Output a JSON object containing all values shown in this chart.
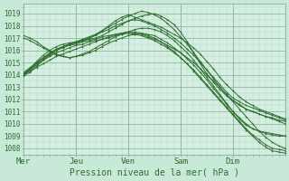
{
  "title": "Pression niveau de la mer( hPa )",
  "background_color": "#c8e8d8",
  "plot_bg_color": "#d4eee0",
  "grid_color_minor": "#b8d8c8",
  "grid_color_major": "#90b8a8",
  "line_color": "#2d6e2d",
  "x_labels": [
    "Mer",
    "Jeu",
    "Ven",
    "Sam",
    "Dim"
  ],
  "x_ticks": [
    0,
    24,
    48,
    72,
    96
  ],
  "ylim": [
    1007.5,
    1019.8
  ],
  "yticks": [
    1008,
    1009,
    1010,
    1011,
    1012,
    1013,
    1014,
    1015,
    1016,
    1017,
    1018,
    1019
  ],
  "total_hours": 120,
  "lines": [
    {
      "x": [
        0,
        3,
        6,
        9,
        12,
        15,
        18,
        21,
        24,
        27,
        30,
        33,
        36,
        39,
        42,
        45,
        48,
        51,
        54,
        57,
        60,
        63,
        66,
        69,
        72,
        75,
        78,
        81,
        84,
        87,
        90,
        93,
        96,
        99,
        102,
        105,
        108,
        111,
        114,
        117,
        120
      ],
      "y": [
        1014.0,
        1014.3,
        1014.6,
        1014.9,
        1015.2,
        1015.5,
        1015.7,
        1015.9,
        1016.1,
        1016.3,
        1016.5,
        1016.7,
        1016.9,
        1017.1,
        1017.3,
        1017.4,
        1017.5,
        1017.4,
        1017.3,
        1017.1,
        1016.9,
        1016.7,
        1016.4,
        1016.1,
        1015.8,
        1015.4,
        1015.0,
        1014.5,
        1014.0,
        1013.5,
        1013.0,
        1012.4,
        1011.8,
        1011.2,
        1010.6,
        1010.0,
        1009.4,
        1008.9,
        1008.5,
        1008.2,
        1008.0
      ]
    },
    {
      "x": [
        0,
        3,
        6,
        9,
        12,
        15,
        18,
        21,
        24,
        27,
        30,
        33,
        36,
        39,
        42,
        45,
        48,
        51,
        54,
        57,
        60,
        63,
        66,
        69,
        72,
        75,
        78,
        81,
        84,
        87,
        90,
        93,
        96,
        99,
        102,
        105,
        108,
        111,
        114,
        117,
        120
      ],
      "y": [
        1014.1,
        1014.4,
        1014.8,
        1015.2,
        1015.5,
        1015.8,
        1016.0,
        1016.2,
        1016.4,
        1016.5,
        1016.7,
        1016.8,
        1016.9,
        1017.0,
        1017.2,
        1017.3,
        1017.4,
        1017.3,
        1017.2,
        1017.0,
        1016.8,
        1016.5,
        1016.2,
        1015.8,
        1015.4,
        1014.9,
        1014.4,
        1013.8,
        1013.2,
        1012.6,
        1012.0,
        1011.4,
        1010.8,
        1010.2,
        1009.6,
        1009.1,
        1008.7,
        1008.3,
        1008.0,
        1007.9,
        1007.8
      ]
    },
    {
      "x": [
        0,
        3,
        6,
        9,
        12,
        15,
        18,
        21,
        24,
        27,
        30,
        33,
        36,
        39,
        42,
        45,
        48,
        51,
        54,
        57,
        60,
        63,
        66,
        69,
        72,
        75,
        78,
        81,
        84,
        87,
        90,
        93,
        96,
        99,
        102,
        105,
        108,
        111,
        114,
        117,
        120
      ],
      "y": [
        1014.2,
        1014.6,
        1015.0,
        1015.4,
        1015.7,
        1016.0,
        1016.2,
        1016.4,
        1016.5,
        1016.7,
        1016.8,
        1016.9,
        1017.1,
        1017.2,
        1017.3,
        1017.4,
        1017.5,
        1017.5,
        1017.4,
        1017.2,
        1017.0,
        1016.7,
        1016.3,
        1015.9,
        1015.4,
        1014.9,
        1014.3,
        1013.7,
        1013.1,
        1012.5,
        1011.9,
        1011.3,
        1010.7,
        1010.1,
        1009.5,
        1009.0,
        1008.5,
        1008.1,
        1007.8,
        1007.7,
        1007.6
      ]
    },
    {
      "x": [
        0,
        3,
        6,
        9,
        12,
        15,
        18,
        21,
        24,
        27,
        30,
        33,
        36,
        39,
        42,
        45,
        48,
        51,
        54,
        57,
        60,
        63,
        66,
        69,
        72,
        75,
        78,
        81,
        84,
        87,
        90,
        93,
        96,
        99,
        102,
        105,
        108,
        111,
        114,
        117,
        120
      ],
      "y": [
        1014.0,
        1014.4,
        1014.9,
        1015.3,
        1015.7,
        1016.0,
        1016.3,
        1016.5,
        1016.7,
        1016.9,
        1017.1,
        1017.3,
        1017.6,
        1017.9,
        1018.2,
        1018.5,
        1018.8,
        1019.0,
        1019.2,
        1019.1,
        1018.9,
        1018.6,
        1018.2,
        1017.7,
        1017.1,
        1016.5,
        1015.8,
        1015.1,
        1014.4,
        1013.7,
        1013.0,
        1012.4,
        1011.9,
        1011.5,
        1011.2,
        1011.0,
        1010.8,
        1010.6,
        1010.4,
        1010.2,
        1010.0
      ]
    },
    {
      "x": [
        0,
        3,
        6,
        9,
        12,
        15,
        18,
        21,
        24,
        27,
        30,
        33,
        36,
        39,
        42,
        45,
        48,
        51,
        54,
        57,
        60,
        63,
        66,
        69,
        72,
        75,
        78,
        81,
        84,
        87,
        90,
        93,
        96,
        99,
        102,
        105,
        108,
        111,
        114,
        117,
        120
      ],
      "y": [
        1013.9,
        1014.2,
        1014.7,
        1015.2,
        1015.6,
        1016.0,
        1016.3,
        1016.5,
        1016.6,
        1016.8,
        1017.0,
        1017.3,
        1017.6,
        1018.0,
        1018.4,
        1018.7,
        1018.9,
        1018.7,
        1018.5,
        1018.3,
        1018.1,
        1017.9,
        1017.6,
        1017.3,
        1017.0,
        1016.6,
        1016.2,
        1015.7,
        1015.1,
        1014.5,
        1013.8,
        1013.2,
        1012.7,
        1012.2,
        1011.8,
        1011.5,
        1011.2,
        1011.0,
        1010.8,
        1010.6,
        1010.4
      ]
    },
    {
      "x": [
        0,
        3,
        6,
        9,
        12,
        15,
        18,
        21,
        24,
        27,
        30,
        33,
        36,
        39,
        42,
        45,
        48,
        51,
        54,
        57,
        60,
        63,
        66,
        69,
        72,
        75,
        78,
        81,
        84,
        87,
        90,
        93,
        96,
        99,
        102,
        105,
        108,
        111,
        114,
        117,
        120
      ],
      "y": [
        1017.0,
        1016.8,
        1016.5,
        1016.2,
        1015.9,
        1015.6,
        1015.5,
        1015.4,
        1015.5,
        1015.6,
        1015.8,
        1016.0,
        1016.3,
        1016.6,
        1016.8,
        1017.0,
        1017.2,
        1017.3,
        1017.4,
        1017.3,
        1017.2,
        1016.9,
        1016.6,
        1016.2,
        1015.8,
        1015.3,
        1014.8,
        1014.2,
        1013.6,
        1012.9,
        1012.3,
        1011.6,
        1011.0,
        1010.4,
        1009.9,
        1009.6,
        1009.4,
        1009.3,
        1009.2,
        1009.1,
        1009.0
      ]
    },
    {
      "x": [
        0,
        3,
        6,
        9,
        12,
        15,
        18,
        21,
        24,
        27,
        30,
        33,
        36,
        39,
        42,
        45,
        48,
        51,
        54,
        57,
        60,
        63,
        66,
        69,
        72,
        75,
        78,
        81,
        84,
        87,
        90,
        93,
        96,
        99,
        102,
        105,
        108,
        111,
        114,
        117,
        120
      ],
      "y": [
        1017.2,
        1017.0,
        1016.7,
        1016.3,
        1016.0,
        1015.7,
        1015.5,
        1015.4,
        1015.5,
        1015.7,
        1015.9,
        1016.2,
        1016.5,
        1016.8,
        1017.1,
        1017.3,
        1017.5,
        1017.7,
        1017.8,
        1017.8,
        1017.7,
        1017.5,
        1017.2,
        1016.8,
        1016.3,
        1015.8,
        1015.2,
        1014.5,
        1013.8,
        1013.1,
        1012.4,
        1011.7,
        1011.0,
        1010.5,
        1010.0,
        1009.6,
        1009.4,
        1009.2,
        1009.1,
        1009.0,
        1009.0
      ]
    },
    {
      "x": [
        0,
        3,
        6,
        9,
        12,
        15,
        18,
        21,
        24,
        27,
        30,
        33,
        36,
        39,
        42,
        45,
        48,
        51,
        54,
        57,
        60,
        63,
        66,
        69,
        72,
        75,
        78,
        81,
        84,
        87,
        90,
        93,
        96,
        99,
        102,
        105,
        108,
        111,
        114,
        117,
        120
      ],
      "y": [
        1014.1,
        1014.5,
        1015.0,
        1015.4,
        1015.8,
        1016.1,
        1016.3,
        1016.5,
        1016.6,
        1016.8,
        1017.0,
        1017.2,
        1017.5,
        1017.7,
        1018.0,
        1018.2,
        1018.4,
        1018.5,
        1018.4,
        1018.2,
        1018.0,
        1017.7,
        1017.4,
        1017.0,
        1016.6,
        1016.1,
        1015.6,
        1015.0,
        1014.4,
        1013.8,
        1013.2,
        1012.6,
        1012.1,
        1011.8,
        1011.5,
        1011.3,
        1011.1,
        1010.9,
        1010.7,
        1010.5,
        1010.3
      ]
    },
    {
      "x": [
        0,
        3,
        6,
        9,
        12,
        15,
        18,
        21,
        24,
        27,
        30,
        33,
        36,
        39,
        42,
        45,
        48,
        51,
        54,
        57,
        60,
        63,
        66,
        69,
        72,
        75,
        78,
        81,
        84,
        87,
        90,
        93,
        96,
        99,
        102,
        105,
        108,
        111,
        114,
        117,
        120
      ],
      "y": [
        1014.0,
        1014.5,
        1015.1,
        1015.6,
        1016.0,
        1016.3,
        1016.5,
        1016.6,
        1016.7,
        1016.8,
        1016.9,
        1017.0,
        1017.2,
        1017.5,
        1017.8,
        1018.1,
        1018.4,
        1018.6,
        1018.8,
        1018.9,
        1019.0,
        1018.8,
        1018.5,
        1018.1,
        1017.5,
        1016.7,
        1015.8,
        1014.9,
        1014.1,
        1013.4,
        1012.8,
        1012.3,
        1011.9,
        1011.6,
        1011.2,
        1011.0,
        1010.8,
        1010.6,
        1010.5,
        1010.3,
        1010.2
      ]
    }
  ]
}
